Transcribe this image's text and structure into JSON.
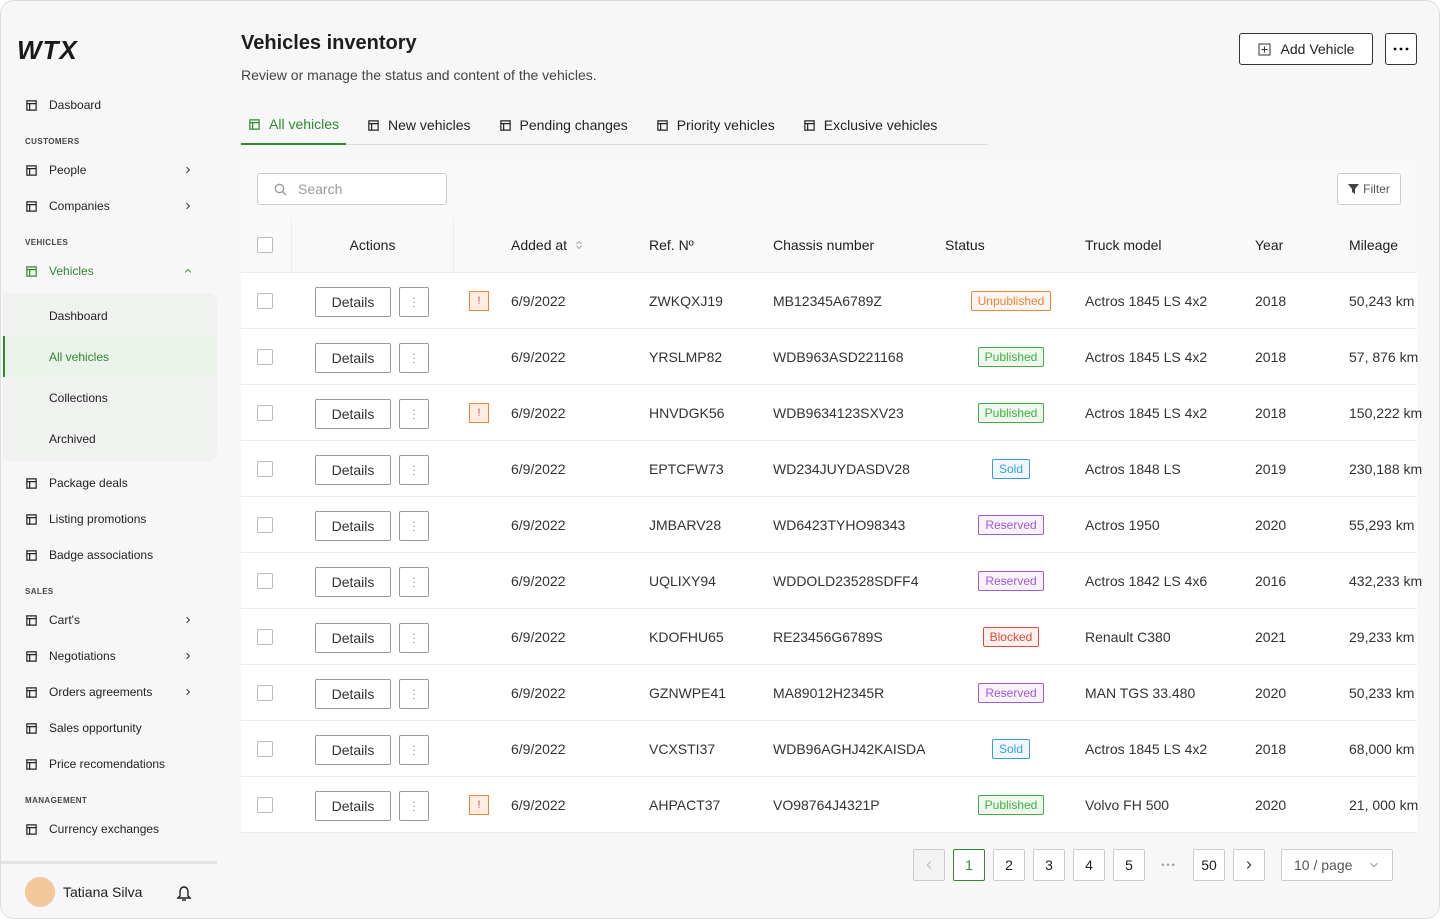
{
  "brand": "WTX",
  "sidebar": {
    "sections": [
      {
        "items": [
          {
            "label": "Dasboard"
          }
        ]
      },
      {
        "title": "CUSTOMERS",
        "items": [
          {
            "label": "People",
            "submenu": true
          },
          {
            "label": "Companies",
            "submenu": true
          }
        ]
      },
      {
        "title": "VEHICLES",
        "items": [
          {
            "label": "Vehicles",
            "submenu": true,
            "expanded": true,
            "active": true,
            "children": [
              {
                "label": "Dashboard"
              },
              {
                "label": "All vehicles",
                "active": true
              },
              {
                "label": "Collections"
              },
              {
                "label": "Archived"
              }
            ]
          },
          {
            "label": "Package deals"
          },
          {
            "label": "Listing promotions"
          },
          {
            "label": "Badge associations"
          }
        ]
      },
      {
        "title": "SALES",
        "items": [
          {
            "label": "Cart's",
            "submenu": true
          },
          {
            "label": "Negotiations",
            "submenu": true
          },
          {
            "label": "Orders agreements",
            "submenu": true
          },
          {
            "label": "Sales opportunity"
          },
          {
            "label": "Price recomendations"
          }
        ]
      },
      {
        "title": "MANAGEMENT",
        "items": [
          {
            "label": "Currency exchanges"
          }
        ]
      }
    ],
    "user": "Tatiana Silva"
  },
  "header": {
    "title": "Vehicles inventory",
    "subtitle": "Review or manage the status and content of the vehicles.",
    "add_button": "Add Vehicle"
  },
  "tabs": [
    {
      "label": "All vehicles",
      "active": true
    },
    {
      "label": "New  vehicles"
    },
    {
      "label": "Pending changes"
    },
    {
      "label": "Priority vehicles"
    },
    {
      "label": "Exclusive  vehicles"
    }
  ],
  "toolbar": {
    "search": "Search",
    "filter": "Filter"
  },
  "table": {
    "columns": [
      "Actions",
      "Added at",
      "Ref. Nº",
      "Chassis number",
      "Status",
      "Truck model",
      "Year",
      "Mileage"
    ],
    "action_label": "Details",
    "rows": [
      {
        "alert": "!",
        "date": "6/9/2022",
        "ref": "ZWKQXJ19",
        "chassis": "MB12345A6789Z",
        "status": "Unpublished",
        "status_color": "#e8833a",
        "model": "Actros 1845 LS  4x2",
        "year": "2018",
        "mileage": "50,243 km"
      },
      {
        "date": "6/9/2022",
        "ref": "YRSLMP82",
        "chassis": "WDB963ASD221168",
        "status": "Published",
        "status_color": "#3fae3f",
        "model": "Actros 1845 LS  4x2",
        "year": "2018",
        "mileage": "57, 876 km"
      },
      {
        "alert": "!",
        "date": "6/9/2022",
        "ref": "HNVDGK56",
        "chassis": "WDB9634123SXV23",
        "status": "Published",
        "status_color": "#3fae3f",
        "model": "Actros 1845 LS  4x2",
        "year": "2018",
        "mileage": "150,222 km"
      },
      {
        "date": "6/9/2022",
        "ref": "EPTCFW73",
        "chassis": "WD234JUYDASDV28",
        "status": "Sold",
        "status_color": "#3a9be0",
        "model": "Actros 1848 LS",
        "year": "2019",
        "mileage": "230,188 km"
      },
      {
        "date": "6/9/2022",
        "ref": "JMBARV28",
        "chassis": "WD6423TYHO98343",
        "status": "Reserved",
        "status_color": "#a05ad6",
        "model": "Actros 1950",
        "year": "2020",
        "mileage": "55,293 km"
      },
      {
        "date": "6/9/2022",
        "ref": "UQLIXY94",
        "chassis": "WDDOLD23528SDFF4",
        "status": "Reserved",
        "status_color": "#a05ad6",
        "model": "Actros 1842 LS  4x6",
        "year": "2016",
        "mileage": "432,233 km"
      },
      {
        "date": "6/9/2022",
        "ref": "KDOFHU65",
        "chassis": "RE23456G6789S",
        "status": "Blocked",
        "status_color": "#e04a3a",
        "model": "Renault C380",
        "year": "2021",
        "mileage": "29,233 km"
      },
      {
        "date": "6/9/2022",
        "ref": "GZNWPE41",
        "chassis": " MA89012H2345R",
        "status": "Reserved",
        "status_color": "#a05ad6",
        "model": "MAN TGS 33.480",
        "year": "2020",
        "mileage": "50,233 km"
      },
      {
        "date": "6/9/2022",
        "ref": "VCXSTI37",
        "chassis": "WDB96AGHJ42KAISDA",
        "status": "Sold",
        "status_color": "#3a9be0",
        "model": "Actros 1845 LS  4x2",
        "year": "2018",
        "mileage": "68,000 km"
      },
      {
        "alert": "!",
        "date": "6/9/2022",
        "ref": "AHPACT37",
        "chassis": "VO98764J4321P",
        "status": "Published",
        "status_color": "#3fae3f",
        "model": "Volvo FH 500",
        "year": "2020",
        "mileage": "21, 000 km"
      }
    ]
  },
  "pagination": {
    "pages": [
      {
        "label": "1",
        "active": true
      },
      {
        "label": "2"
      },
      {
        "label": "3"
      },
      {
        "label": "4"
      },
      {
        "label": "5"
      }
    ],
    "ellipsis": "•••",
    "last": "50",
    "page_size": "10 / page"
  }
}
